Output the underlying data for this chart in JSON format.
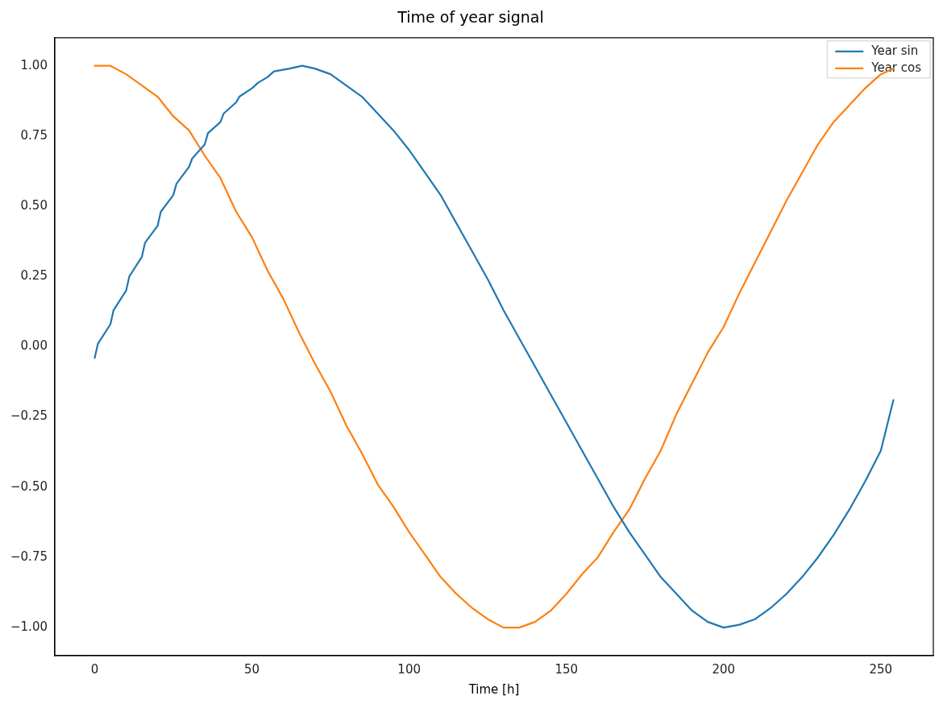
{
  "chart_data": {
    "type": "line",
    "title": "Time of year signal",
    "xlabel": "Time [h]",
    "xlim": [
      -12.7,
      266.7
    ],
    "xticks": [
      0,
      50,
      100,
      150,
      200,
      250
    ],
    "ylim": [
      -1.1,
      1.1
    ],
    "yticks": [
      {
        "value": -1,
        "label": "−1.00"
      },
      {
        "value": -0.75,
        "label": "−0.75"
      },
      {
        "value": -0.5,
        "label": "−0.50"
      },
      {
        "value": -0.25,
        "label": "−0.25"
      },
      {
        "value": 0,
        "label": "0.00"
      },
      {
        "value": 0.25,
        "label": "0.25"
      },
      {
        "value": 0.5,
        "label": "0.50"
      },
      {
        "value": 0.75,
        "label": "0.75"
      },
      {
        "value": 1,
        "label": "1.00"
      }
    ],
    "grid": false,
    "legend": "top right",
    "marker": "none",
    "line_style": "solid",
    "series": [
      {
        "name": "Year sin",
        "color": "#1f77b4",
        "x": [
          0,
          1,
          5,
          6,
          10,
          11,
          15,
          16,
          20,
          21,
          25,
          26,
          30,
          31,
          35,
          36,
          40,
          41,
          45,
          46,
          50,
          52,
          55,
          57,
          62,
          66,
          70,
          75,
          80,
          85,
          90,
          95,
          100,
          105,
          110,
          115,
          120,
          125,
          130,
          135,
          140,
          145,
          150,
          155,
          160,
          165,
          170,
          175,
          180,
          185,
          190,
          195,
          200,
          205,
          210,
          215,
          220,
          225,
          230,
          235,
          240,
          245,
          250,
          254
        ],
        "values": [
          -0.04,
          0.01,
          0.08,
          0.13,
          0.2,
          0.25,
          0.32,
          0.37,
          0.43,
          0.48,
          0.54,
          0.58,
          0.64,
          0.67,
          0.72,
          0.76,
          0.8,
          0.83,
          0.87,
          0.89,
          0.92,
          0.94,
          0.96,
          0.98,
          0.99,
          1.0,
          0.99,
          0.97,
          0.93,
          0.89,
          0.83,
          0.77,
          0.7,
          0.62,
          0.54,
          0.44,
          0.34,
          0.24,
          0.13,
          0.03,
          -0.07,
          -0.17,
          -0.27,
          -0.37,
          -0.47,
          -0.57,
          -0.66,
          -0.74,
          -0.82,
          -0.88,
          -0.94,
          -0.98,
          -1.0,
          -0.99,
          -0.97,
          -0.93,
          -0.88,
          -0.82,
          -0.75,
          -0.67,
          -0.58,
          -0.48,
          -0.37,
          -0.19
        ]
      },
      {
        "name": "Year cos",
        "color": "#ff7f0e",
        "x": [
          0,
          5,
          10,
          15,
          20,
          25,
          30,
          35,
          40,
          45,
          50,
          55,
          60,
          65,
          70,
          75,
          80,
          85,
          90,
          95,
          100,
          105,
          110,
          115,
          120,
          125,
          130,
          135,
          140,
          145,
          150,
          155,
          160,
          165,
          170,
          175,
          180,
          185,
          190,
          195,
          200,
          205,
          210,
          215,
          220,
          225,
          230,
          235,
          240,
          245,
          250,
          254
        ],
        "values": [
          1.0,
          1.0,
          0.97,
          0.93,
          0.89,
          0.82,
          0.77,
          0.68,
          0.6,
          0.48,
          0.39,
          0.27,
          0.17,
          0.05,
          -0.06,
          -0.16,
          -0.28,
          -0.38,
          -0.49,
          -0.57,
          -0.66,
          -0.74,
          -0.82,
          -0.88,
          -0.93,
          -0.97,
          -1.0,
          -1.0,
          -0.98,
          -0.94,
          -0.88,
          -0.81,
          -0.75,
          -0.66,
          -0.58,
          -0.47,
          -0.37,
          -0.24,
          -0.13,
          -0.02,
          0.07,
          0.19,
          0.3,
          0.41,
          0.52,
          0.62,
          0.72,
          0.8,
          0.86,
          0.92,
          0.97,
          0.99
        ]
      }
    ]
  }
}
